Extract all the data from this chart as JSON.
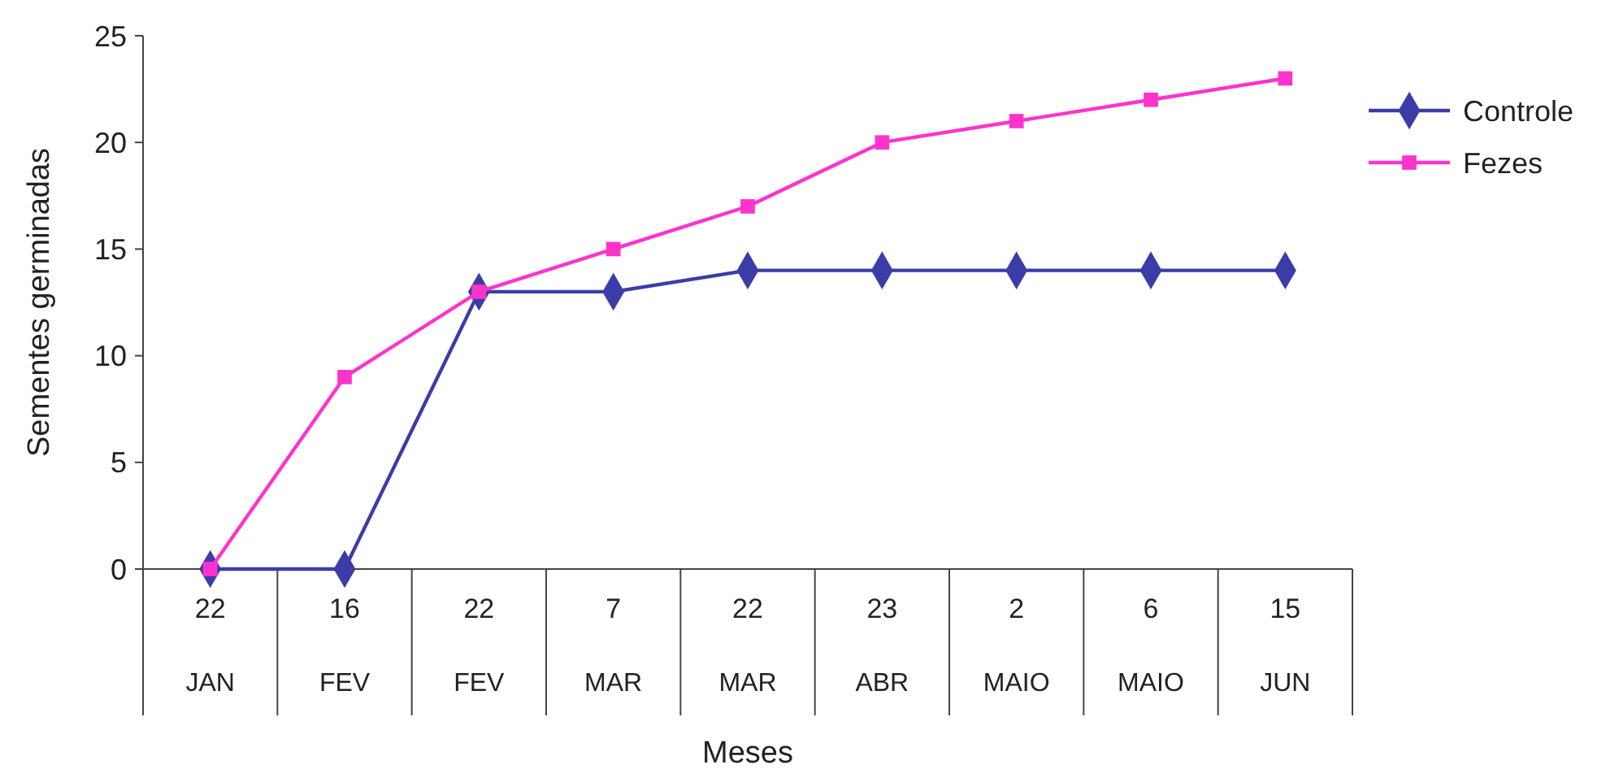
{
  "chart_data": {
    "type": "line",
    "xlabel": "Meses",
    "ylabel": "Sementes germinadas",
    "categories": [
      "22 JAN",
      "16 FEV",
      "22 FEV",
      "7 MAR",
      "22 MAR",
      "23 ABR",
      "2 MAIO",
      "6 MAIO",
      "15 JUN"
    ],
    "series": [
      {
        "name": "Controle",
        "color": "#3c3ca8",
        "marker": "diamond",
        "values": [
          0,
          0,
          13,
          13,
          14,
          14,
          14,
          14,
          14
        ]
      },
      {
        "name": "Fezes",
        "color": "#ff33cc",
        "marker": "square",
        "values": [
          0,
          9,
          13,
          15,
          17,
          20,
          21,
          22,
          23
        ]
      }
    ],
    "ylim": [
      0,
      25
    ],
    "yticks": [
      0,
      5,
      10,
      15,
      20,
      25
    ],
    "grid": false,
    "legend": "right",
    "line_style": "solid"
  }
}
